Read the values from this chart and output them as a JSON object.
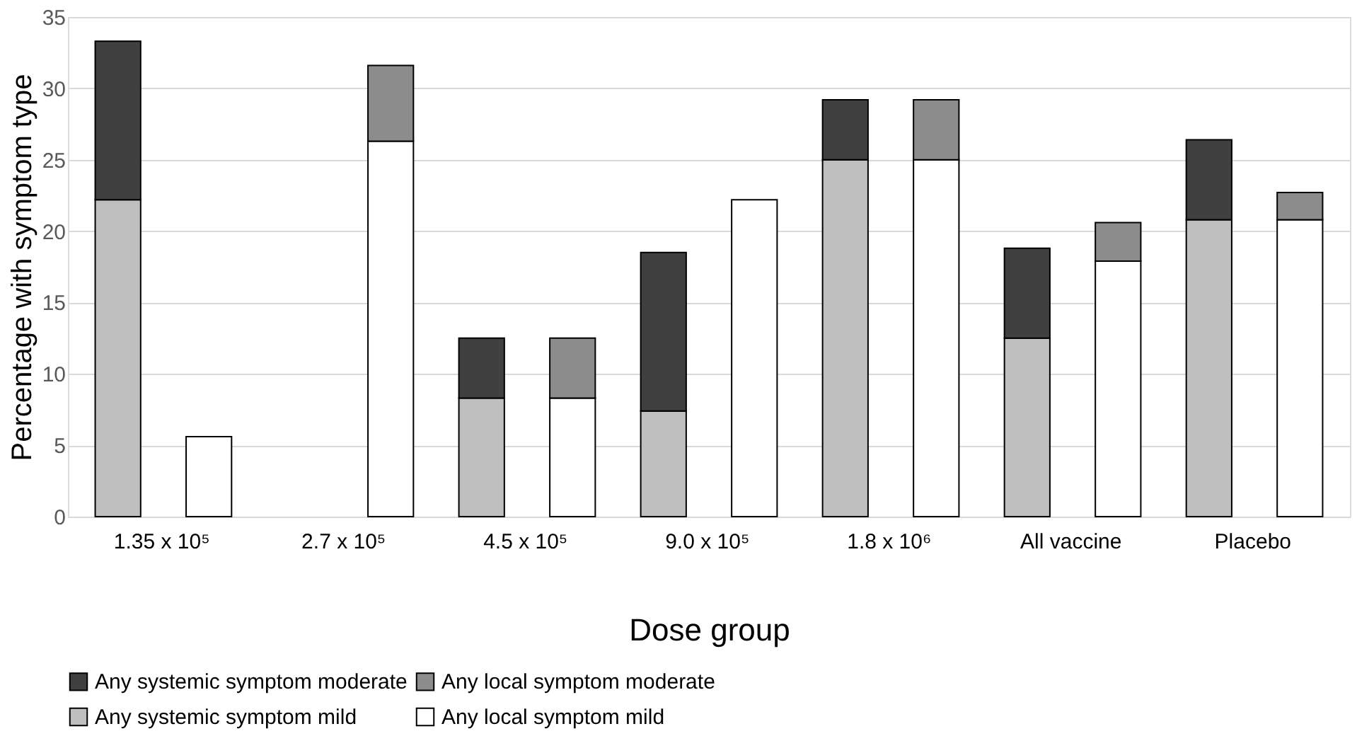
{
  "chart_data": {
    "type": "bar",
    "stacked": true,
    "xlabel": "Dose group",
    "ylabel": "Percentage with symptom type",
    "categories": [
      "1.35 x 10⁵",
      null,
      "2.7 x 10⁵",
      null,
      "4.5 x 10⁵",
      null,
      "9.0 x 10⁵",
      null,
      "1.8 x 10⁶",
      null,
      "All vaccine",
      null,
      "Placebo",
      null
    ],
    "series": [
      {
        "name": "Any systemic symptom mild",
        "color": "#bfbfbf",
        "values": [
          22.2,
          null,
          null,
          null,
          8.3,
          null,
          7.4,
          null,
          25.0,
          null,
          12.5,
          null,
          20.8,
          null
        ]
      },
      {
        "name": "Any systemic symptom moderate",
        "color": "#404040",
        "values": [
          11.1,
          null,
          null,
          null,
          4.2,
          null,
          11.1,
          null,
          4.2,
          null,
          6.3,
          null,
          5.6,
          null
        ]
      },
      {
        "name": "Any local symptom mild",
        "color": "#ffffff",
        "values": [
          null,
          5.6,
          null,
          26.3,
          null,
          8.3,
          null,
          22.2,
          null,
          25.0,
          null,
          17.9,
          null,
          20.8
        ]
      },
      {
        "name": "Any local symptom moderate",
        "color": "#8c8c8c",
        "values": [
          null,
          null,
          null,
          5.3,
          null,
          4.2,
          null,
          null,
          null,
          4.2,
          null,
          2.7,
          null,
          1.9
        ]
      }
    ],
    "ylim": [
      0,
      35
    ],
    "yticks": [
      0,
      5,
      10,
      15,
      20,
      25,
      30,
      35
    ],
    "grid": "y",
    "legend": "bottom"
  }
}
